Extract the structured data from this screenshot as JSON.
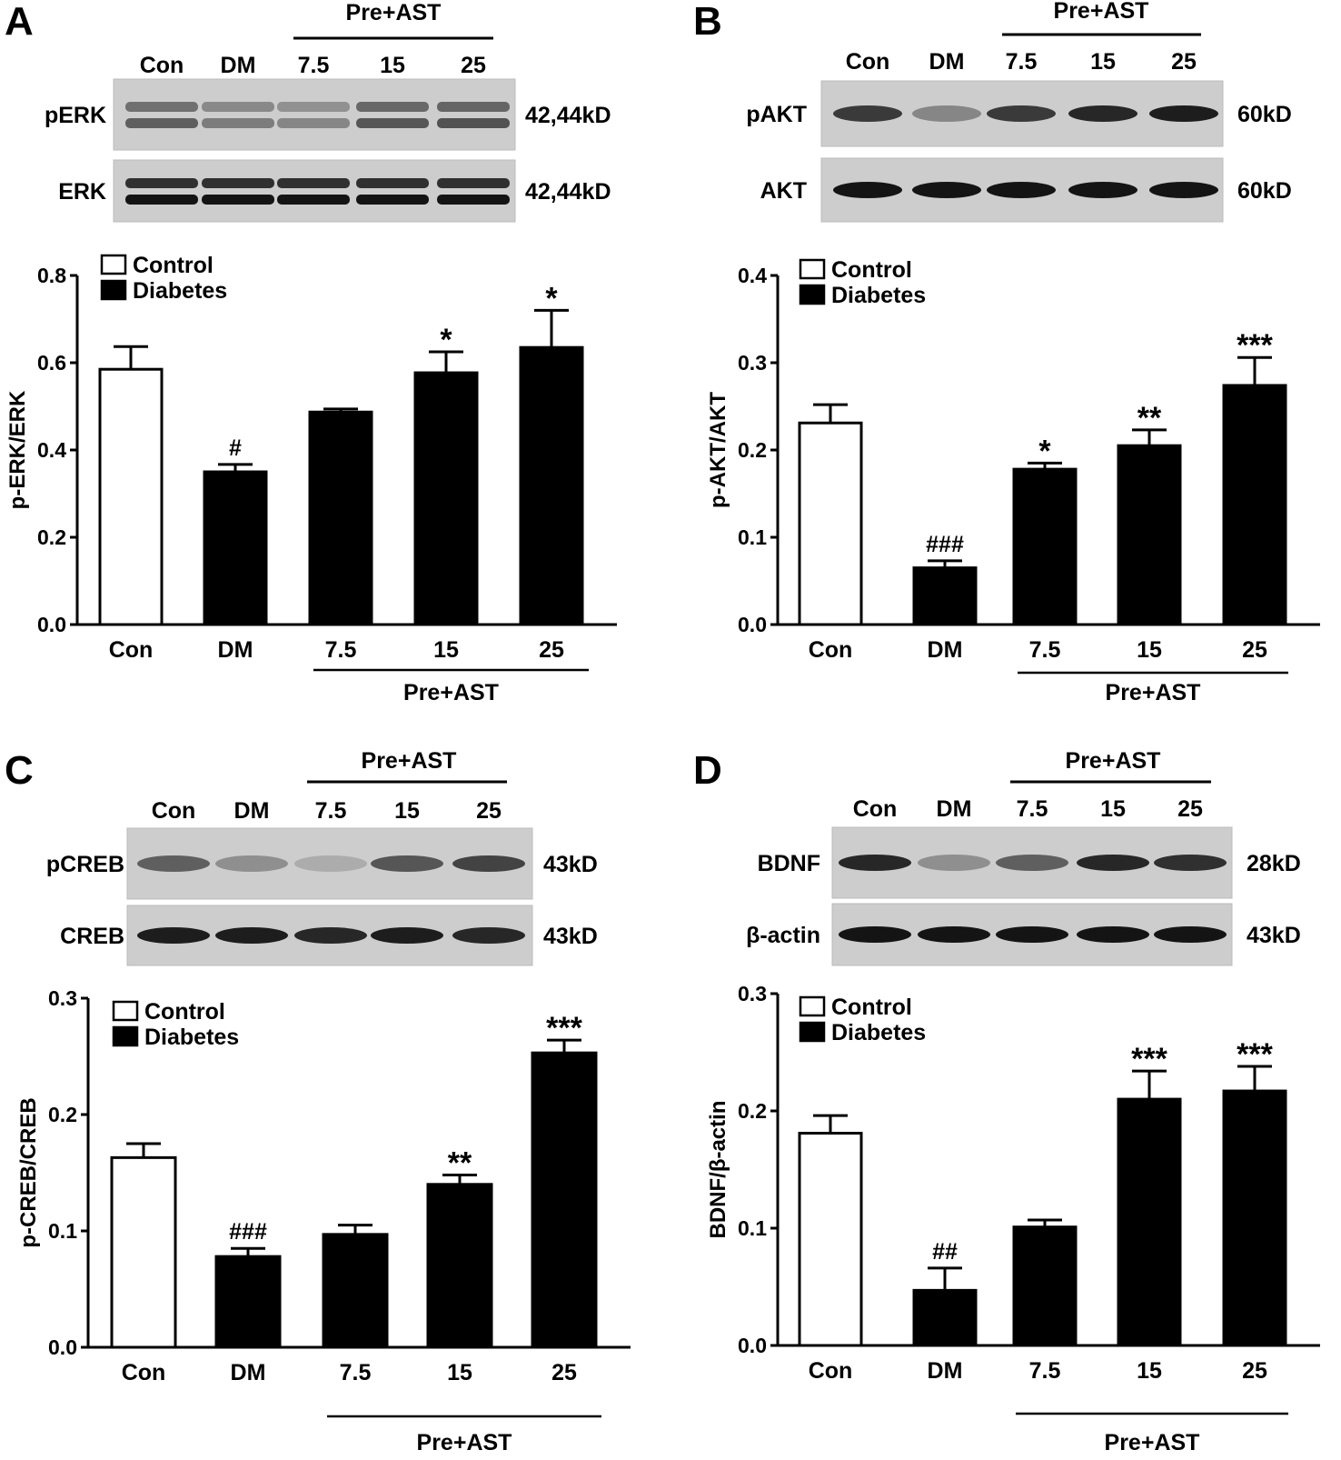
{
  "figure": {
    "panels": [
      {
        "letter": "A",
        "blot": {
          "lanes": [
            "Con",
            "DM",
            "7.5",
            "15",
            "25"
          ],
          "group_label": "Pre+AST",
          "rows": [
            {
              "label": "pERK",
              "size": "42,44kD",
              "intensity": [
                0.55,
                0.4,
                0.35,
                0.6,
                0.62
              ],
              "double": true
            },
            {
              "label": "ERK",
              "size": "42,44kD",
              "intensity": [
                0.95,
                0.95,
                0.95,
                0.95,
                0.95
              ],
              "double": true
            }
          ]
        },
        "legend": {
          "control": "Control",
          "diabetes": "Diabetes"
        }
      },
      {
        "letter": "B",
        "blot": {
          "lanes": [
            "Con",
            "DM",
            "7.5",
            "15",
            "25"
          ],
          "group_label": "Pre+AST",
          "rows": [
            {
              "label": "pAKT",
              "size": "60kD",
              "intensity": [
                0.75,
                0.35,
                0.75,
                0.85,
                0.9
              ],
              "double": false
            },
            {
              "label": "AKT",
              "size": "60kD",
              "intensity": [
                0.95,
                0.95,
                0.95,
                0.95,
                0.95
              ],
              "double": false
            }
          ]
        },
        "legend": {
          "control": "Control",
          "diabetes": "Diabetes"
        }
      },
      {
        "letter": "C",
        "blot": {
          "lanes": [
            "Con",
            "DM",
            "7.5",
            "15",
            "25"
          ],
          "group_label": "Pre+AST",
          "rows": [
            {
              "label": "pCREB",
              "size": "43kD",
              "intensity": [
                0.55,
                0.3,
                0.15,
                0.6,
                0.7
              ],
              "double": false
            },
            {
              "label": "CREB",
              "size": "43kD",
              "intensity": [
                0.9,
                0.9,
                0.85,
                0.9,
                0.85
              ],
              "double": false
            }
          ]
        },
        "legend": {
          "control": "Control",
          "diabetes": "Diabetes"
        }
      },
      {
        "letter": "D",
        "blot": {
          "lanes": [
            "Con",
            "DM",
            "7.5",
            "15",
            "25"
          ],
          "group_label": "Pre+AST",
          "rows": [
            {
              "label": "BDNF",
              "size": "28kD",
              "intensity": [
                0.85,
                0.3,
                0.55,
                0.85,
                0.8
              ],
              "double": false
            },
            {
              "label": "β-actin",
              "size": "43kD",
              "intensity": [
                0.95,
                0.95,
                0.95,
                0.95,
                0.95
              ],
              "double": false
            }
          ]
        },
        "legend": {
          "control": "Control",
          "diabetes": "Diabetes"
        }
      }
    ]
  },
  "chart_data": [
    {
      "type": "bar",
      "panel": "A",
      "ylabel": "p-ERK/ERK",
      "ylim": [
        0,
        0.8
      ],
      "yticks": [
        "0.0",
        "0.2",
        "0.4",
        "0.6",
        "0.8"
      ],
      "categories": [
        "Con",
        "DM",
        "7.5",
        "15",
        "25"
      ],
      "group_label": "Pre+AST",
      "values": [
        0.585,
        0.35,
        0.487,
        0.577,
        0.635
      ],
      "errors": [
        0.052,
        0.017,
        0.007,
        0.048,
        0.085
      ],
      "annotations": [
        "",
        "#",
        "",
        "*",
        "*"
      ],
      "fills": [
        "#ffffff",
        "#000000",
        "#000000",
        "#000000",
        "#000000"
      ],
      "legend": [
        "Control",
        "Diabetes"
      ]
    },
    {
      "type": "bar",
      "panel": "B",
      "ylabel": "p-AKT/AKT",
      "ylim": [
        0,
        0.4
      ],
      "yticks": [
        "0.0",
        "0.1",
        "0.2",
        "0.3",
        "0.4"
      ],
      "categories": [
        "Con",
        "DM",
        "7.5",
        "15",
        "25"
      ],
      "group_label": "Pre+AST",
      "values": [
        0.231,
        0.065,
        0.178,
        0.205,
        0.274
      ],
      "errors": [
        0.021,
        0.008,
        0.007,
        0.018,
        0.032
      ],
      "annotations": [
        "",
        "###",
        "*",
        "**",
        "***"
      ],
      "fills": [
        "#ffffff",
        "#000000",
        "#000000",
        "#000000",
        "#000000"
      ],
      "legend": [
        "Control",
        "Diabetes"
      ]
    },
    {
      "type": "bar",
      "panel": "C",
      "ylabel": "p-CREB/CREB",
      "ylim": [
        0,
        0.3
      ],
      "yticks": [
        "0.0",
        "0.1",
        "0.2",
        "0.3"
      ],
      "categories": [
        "Con",
        "DM",
        "7.5",
        "15",
        "25"
      ],
      "group_label": "Pre+AST",
      "values": [
        0.163,
        0.078,
        0.097,
        0.14,
        0.253
      ],
      "errors": [
        0.012,
        0.007,
        0.008,
        0.008,
        0.011
      ],
      "annotations": [
        "",
        "###",
        "",
        "**",
        "***"
      ],
      "fills": [
        "#ffffff",
        "#000000",
        "#000000",
        "#000000",
        "#000000"
      ],
      "legend": [
        "Control",
        "Diabetes"
      ]
    },
    {
      "type": "bar",
      "panel": "D",
      "ylabel": "BDNF/β-actin",
      "ylim": [
        0,
        0.3
      ],
      "yticks": [
        "0.0",
        "0.1",
        "0.2",
        "0.3"
      ],
      "categories": [
        "Con",
        "DM",
        "7.5",
        "15",
        "25"
      ],
      "group_label": "Pre+AST",
      "values": [
        0.181,
        0.047,
        0.101,
        0.21,
        0.217
      ],
      "errors": [
        0.015,
        0.019,
        0.006,
        0.024,
        0.021
      ],
      "annotations": [
        "",
        "##",
        "",
        "***",
        "***"
      ],
      "fills": [
        "#ffffff",
        "#000000",
        "#000000",
        "#000000",
        "#000000"
      ],
      "legend": [
        "Control",
        "Diabetes"
      ]
    }
  ]
}
